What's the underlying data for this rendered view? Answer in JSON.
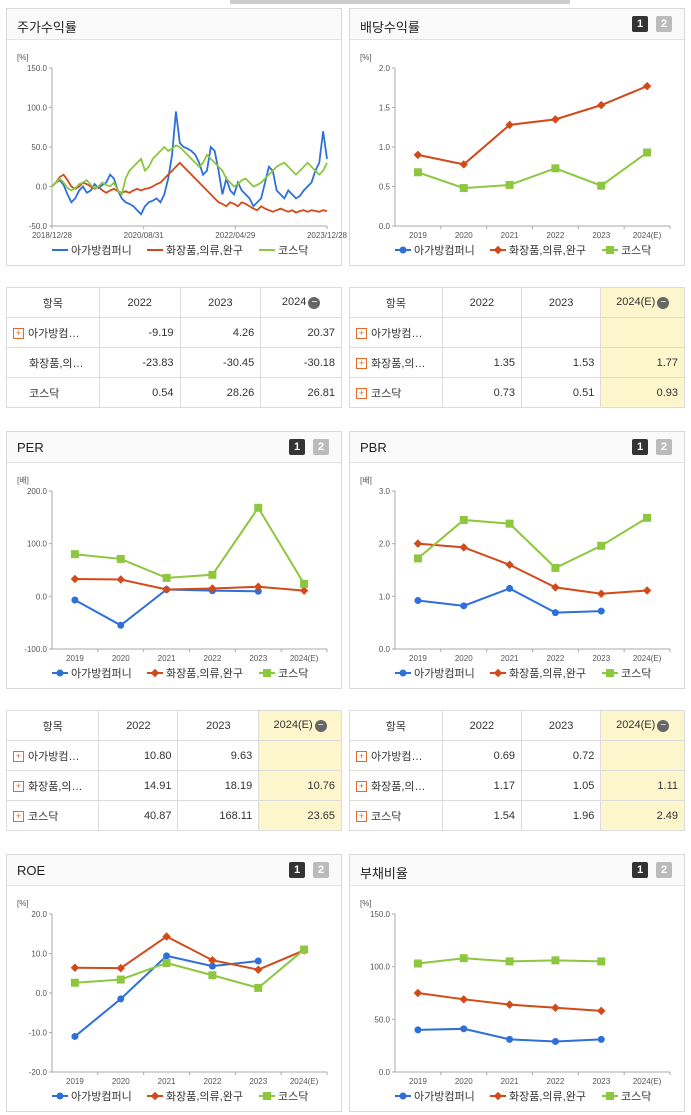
{
  "legend": [
    "아가방컴퍼니",
    "화장품,의류,완구",
    "코스닥"
  ],
  "colors": {
    "s0": "#2e6fd9",
    "s1": "#d24a1a",
    "s2": "#8dc63f"
  },
  "panels": {
    "stock": {
      "title": "주가수익률",
      "unit": "[%]"
    },
    "div": {
      "title": "배당수익률",
      "unit": "[%]"
    },
    "per": {
      "title": "PER",
      "unit": "[배]"
    },
    "pbr": {
      "title": "PBR",
      "unit": "[배]"
    },
    "roe": {
      "title": "ROE",
      "unit": "[%]"
    },
    "debt": {
      "title": "부채비율",
      "unit": "[%]"
    }
  },
  "pager": {
    "one": "1",
    "two": "2"
  },
  "tables": {
    "stock": {
      "headers": [
        "항목",
        "2022",
        "2023",
        "2024"
      ],
      "rows": [
        {
          "name": "아가방컴…",
          "plus": true,
          "values": [
            "-9.19",
            "4.26",
            "20.37"
          ]
        },
        {
          "name": "화장품,의…",
          "plus": false,
          "values": [
            "-23.83",
            "-30.45",
            "-30.18"
          ]
        },
        {
          "name": "코스닥",
          "plus": false,
          "values": [
            "0.54",
            "28.26",
            "26.81"
          ]
        }
      ]
    },
    "div": {
      "headers": [
        "항목",
        "2022",
        "2023",
        "2024(E)"
      ],
      "rows": [
        {
          "name": "아가방컴…",
          "plus": true,
          "values": [
            "",
            "",
            ""
          ]
        },
        {
          "name": "화장품,의…",
          "plus": true,
          "values": [
            "1.35",
            "1.53",
            "1.77"
          ]
        },
        {
          "name": "코스닥",
          "plus": true,
          "values": [
            "0.73",
            "0.51",
            "0.93"
          ]
        }
      ]
    },
    "per": {
      "headers": [
        "항목",
        "2022",
        "2023",
        "2024(E)"
      ],
      "rows": [
        {
          "name": "아가방컴…",
          "plus": true,
          "values": [
            "10.80",
            "9.63",
            ""
          ]
        },
        {
          "name": "화장품,의…",
          "plus": true,
          "values": [
            "14.91",
            "18.19",
            "10.76"
          ]
        },
        {
          "name": "코스닥",
          "plus": true,
          "values": [
            "40.87",
            "168.11",
            "23.65"
          ]
        }
      ]
    },
    "pbr": {
      "headers": [
        "항목",
        "2022",
        "2023",
        "2024(E)"
      ],
      "rows": [
        {
          "name": "아가방컴…",
          "plus": true,
          "values": [
            "0.69",
            "0.72",
            ""
          ]
        },
        {
          "name": "화장품,의…",
          "plus": true,
          "values": [
            "1.17",
            "1.05",
            "1.11"
          ]
        },
        {
          "name": "코스닥",
          "plus": true,
          "values": [
            "1.54",
            "1.96",
            "2.49"
          ]
        }
      ]
    }
  },
  "chart_data": [
    {
      "id": "stock",
      "type": "line",
      "title": "주가수익률",
      "ylabel": "[%]",
      "ylim": [
        -50,
        150
      ],
      "yticks": [
        "150.0",
        "100.0",
        "50.0",
        "0.0",
        "-50.0"
      ],
      "xticks": [
        "2018/12/28",
        "2020/08/31",
        "2022/04/29",
        "2023/12/28"
      ],
      "series": [
        {
          "name": "아가방컴퍼니",
          "values": [
            0,
            5,
            8,
            2,
            -10,
            -20,
            -15,
            -5,
            0,
            -8,
            -5,
            3,
            -2,
            2,
            5,
            15,
            10,
            -5,
            -15,
            -20,
            -22,
            -25,
            -30,
            -35,
            -25,
            -20,
            -18,
            -15,
            -20,
            -10,
            10,
            40,
            95,
            55,
            50,
            48,
            45,
            40,
            30,
            15,
            20,
            50,
            45,
            20,
            -10,
            10,
            -5,
            -10,
            5,
            -5,
            -10,
            -15,
            -25,
            -20,
            -15,
            5,
            25,
            20,
            -5,
            -10,
            -15,
            -5,
            -10,
            -15,
            -12,
            -5,
            0,
            5,
            20,
            30,
            70,
            35
          ]
        },
        {
          "name": "화장품,의류,완구",
          "values": [
            0,
            5,
            12,
            15,
            8,
            0,
            -3,
            0,
            5,
            3,
            0,
            -3,
            0,
            -5,
            -8,
            -5,
            -3,
            -6,
            -8,
            -6,
            -8,
            -5,
            -3,
            -5,
            -3,
            -2,
            0,
            3,
            5,
            10,
            15,
            20,
            25,
            30,
            25,
            20,
            15,
            10,
            5,
            0,
            -5,
            -10,
            -15,
            -20,
            -22,
            -25,
            -20,
            -22,
            -25,
            -20,
            -22,
            -25,
            -28,
            -30,
            -25,
            -28,
            -30,
            -32,
            -30,
            -28,
            -30,
            -32,
            -30,
            -33,
            -31,
            -30,
            -32,
            -30,
            -31,
            -32,
            -30,
            -31
          ]
        },
        {
          "name": "코스닥",
          "values": [
            0,
            5,
            10,
            5,
            -2,
            -5,
            -2,
            3,
            5,
            8,
            2,
            -2,
            0,
            5,
            2,
            0,
            5,
            -5,
            -10,
            10,
            20,
            25,
            30,
            35,
            20,
            25,
            35,
            40,
            45,
            50,
            45,
            48,
            52,
            50,
            45,
            40,
            35,
            30,
            25,
            30,
            40,
            35,
            30,
            25,
            20,
            10,
            5,
            0,
            3,
            8,
            10,
            5,
            0,
            2,
            5,
            10,
            15,
            20,
            25,
            28,
            30,
            25,
            20,
            15,
            20,
            25,
            30,
            25,
            20,
            15,
            20,
            30
          ]
        }
      ]
    },
    {
      "id": "div",
      "type": "line",
      "title": "배당수익률",
      "ylabel": "[%]",
      "ylim": [
        0,
        2
      ],
      "yticks": [
        "2.0",
        "1.5",
        "1.0",
        "0.5",
        "0.0"
      ],
      "categories": [
        "2019",
        "2020",
        "2021",
        "2022",
        "2023",
        "2024(E)"
      ],
      "series": [
        {
          "name": "아가방컴퍼니",
          "values": [
            null,
            null,
            null,
            null,
            null,
            null
          ]
        },
        {
          "name": "화장품,의류,완구",
          "values": [
            0.9,
            0.78,
            1.28,
            1.35,
            1.53,
            1.77
          ]
        },
        {
          "name": "코스닥",
          "values": [
            0.68,
            0.48,
            0.52,
            0.73,
            0.51,
            0.93
          ]
        }
      ]
    },
    {
      "id": "per",
      "type": "line",
      "title": "PER",
      "ylabel": "[배]",
      "ylim": [
        -100,
        200
      ],
      "yticks": [
        "200.0",
        "100.0",
        "0.0",
        "-100.0"
      ],
      "categories": [
        "2019",
        "2020",
        "2021",
        "2022",
        "2023",
        "2024(E)"
      ],
      "series": [
        {
          "name": "아가방컴퍼니",
          "values": [
            -7,
            -55,
            13,
            10.8,
            9.63,
            null
          ]
        },
        {
          "name": "화장품,의류,완구",
          "values": [
            33,
            32,
            13,
            14.91,
            18.19,
            10.76
          ]
        },
        {
          "name": "코스닥",
          "values": [
            80,
            71,
            35,
            40.87,
            168.11,
            23.65
          ]
        }
      ]
    },
    {
      "id": "pbr",
      "type": "line",
      "title": "PBR",
      "ylabel": "[배]",
      "ylim": [
        0,
        3
      ],
      "yticks": [
        "3.0",
        "2.0",
        "1.0",
        "0.0"
      ],
      "categories": [
        "2019",
        "2020",
        "2021",
        "2022",
        "2023",
        "2024(E)"
      ],
      "series": [
        {
          "name": "아가방컴퍼니",
          "values": [
            0.92,
            0.82,
            1.15,
            0.69,
            0.72,
            null
          ]
        },
        {
          "name": "화장품,의류,완구",
          "values": [
            2.0,
            1.93,
            1.6,
            1.17,
            1.05,
            1.11
          ]
        },
        {
          "name": "코스닥",
          "values": [
            1.72,
            2.45,
            2.38,
            1.54,
            1.96,
            2.49
          ]
        }
      ]
    },
    {
      "id": "roe",
      "type": "line",
      "title": "ROE",
      "ylabel": "[%]",
      "ylim": [
        -20,
        20
      ],
      "yticks": [
        "20.0",
        "10.0",
        "0.0",
        "-10.0",
        "-20.0"
      ],
      "categories": [
        "2019",
        "2020",
        "2021",
        "2022",
        "2023",
        "2024(E)"
      ],
      "series": [
        {
          "name": "아가방컴퍼니",
          "values": [
            -11,
            -1.5,
            9.4,
            6.8,
            8.1,
            null
          ]
        },
        {
          "name": "화장품,의류,완구",
          "values": [
            6.4,
            6.3,
            14.3,
            8.3,
            5.9,
            10.8
          ]
        },
        {
          "name": "코스닥",
          "values": [
            2.6,
            3.4,
            7.6,
            4.5,
            1.3,
            11.0
          ]
        }
      ]
    },
    {
      "id": "debt",
      "type": "line",
      "title": "부채비율",
      "ylabel": "[%]",
      "ylim": [
        0,
        150
      ],
      "yticks": [
        "150.0",
        "100.0",
        "50.0",
        "0.0"
      ],
      "categories": [
        "2019",
        "2020",
        "2021",
        "2022",
        "2023",
        "2024(E)"
      ],
      "series": [
        {
          "name": "아가방컴퍼니",
          "values": [
            40,
            41,
            31,
            29,
            31,
            null
          ]
        },
        {
          "name": "화장품,의류,완구",
          "values": [
            75,
            69,
            64,
            61,
            58,
            null
          ]
        },
        {
          "name": "코스닥",
          "values": [
            103,
            108,
            105,
            106,
            105,
            null
          ]
        }
      ]
    }
  ]
}
